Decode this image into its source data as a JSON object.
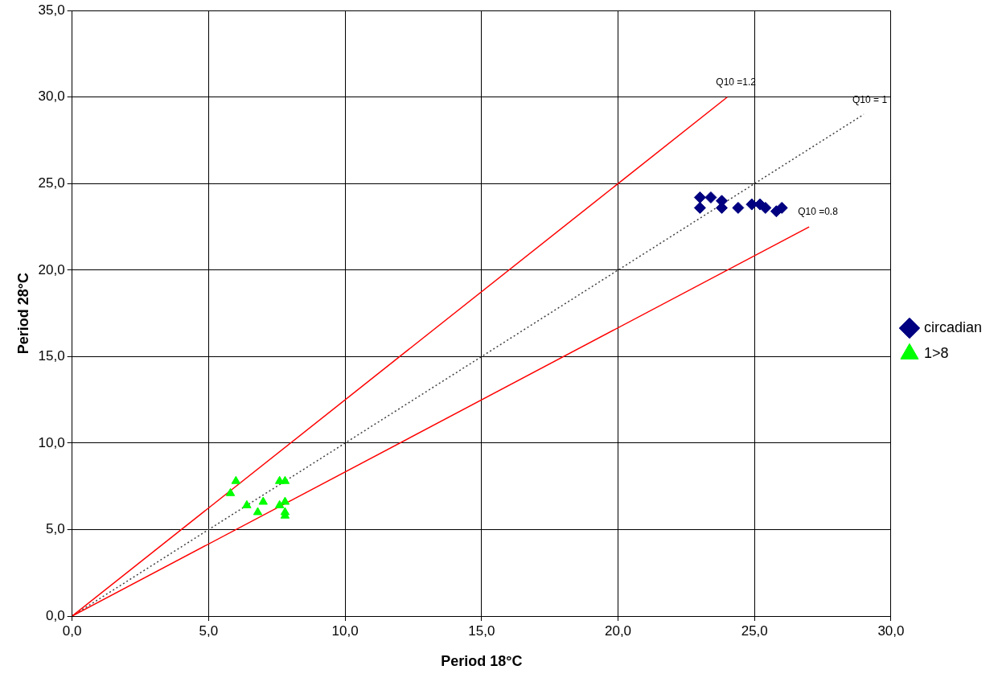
{
  "chart_data": {
    "type": "scatter",
    "xlabel": "Period 18°C",
    "ylabel": "Period 28°C",
    "xlim": [
      0,
      30
    ],
    "ylim": [
      0,
      35
    ],
    "xticks": [
      {
        "value": 0,
        "label": "0,0"
      },
      {
        "value": 5,
        "label": "5,0"
      },
      {
        "value": 10,
        "label": "10,0"
      },
      {
        "value": 15,
        "label": "15,0"
      },
      {
        "value": 20,
        "label": "20,0"
      },
      {
        "value": 25,
        "label": "25,0"
      },
      {
        "value": 30,
        "label": "30,0"
      }
    ],
    "yticks": [
      {
        "value": 0,
        "label": "0,0"
      },
      {
        "value": 5,
        "label": "5,0"
      },
      {
        "value": 10,
        "label": "10,0"
      },
      {
        "value": 15,
        "label": "15,0"
      },
      {
        "value": 20,
        "label": "20,0"
      },
      {
        "value": 25,
        "label": "25,0"
      },
      {
        "value": 30,
        "label": "30,0"
      },
      {
        "value": 35,
        "label": "35,0"
      }
    ],
    "grid": true,
    "legend": "right",
    "series": [
      {
        "name": "circadian",
        "color": "#000080",
        "marker": "diamond",
        "x": [
          23.0,
          23.0,
          23.4,
          23.8,
          23.8,
          24.4,
          24.9,
          25.2,
          25.4,
          25.8,
          26.0
        ],
        "values": [
          24.2,
          23.6,
          24.2,
          24.0,
          23.6,
          23.6,
          23.8,
          23.8,
          23.6,
          23.4,
          23.6
        ]
      },
      {
        "name": "1>8",
        "color": "#00ff00",
        "marker": "triangle",
        "x": [
          6.0,
          5.8,
          6.4,
          6.8,
          7.0,
          7.6,
          7.8,
          7.6,
          7.8,
          7.8,
          7.8
        ],
        "values": [
          7.8,
          7.1,
          6.4,
          6.0,
          6.6,
          7.8,
          7.8,
          6.4,
          6.6,
          6.0,
          5.8
        ]
      },
      {
        "type": "line",
        "color": "#ff0000",
        "marker": "none",
        "line_style": "solid",
        "x": [
          0,
          24
        ],
        "values": [
          0,
          30
        ]
      },
      {
        "type": "line",
        "color": "#ff0000",
        "marker": "none",
        "line_style": "solid",
        "x": [
          0,
          27
        ],
        "values": [
          0,
          22.5
        ]
      },
      {
        "type": "line",
        "color": "#404040",
        "marker": "none",
        "line_style": "dotted",
        "x": [
          0,
          29
        ],
        "values": [
          0,
          29
        ]
      }
    ],
    "annotations": [
      {
        "text": "Q10 =1.2",
        "x": 24,
        "y": 30
      },
      {
        "text": "Q10 = 1",
        "x": 29,
        "y": 29
      },
      {
        "text": "Q10 =0.8",
        "x": 27,
        "y": 22.5
      }
    ]
  }
}
